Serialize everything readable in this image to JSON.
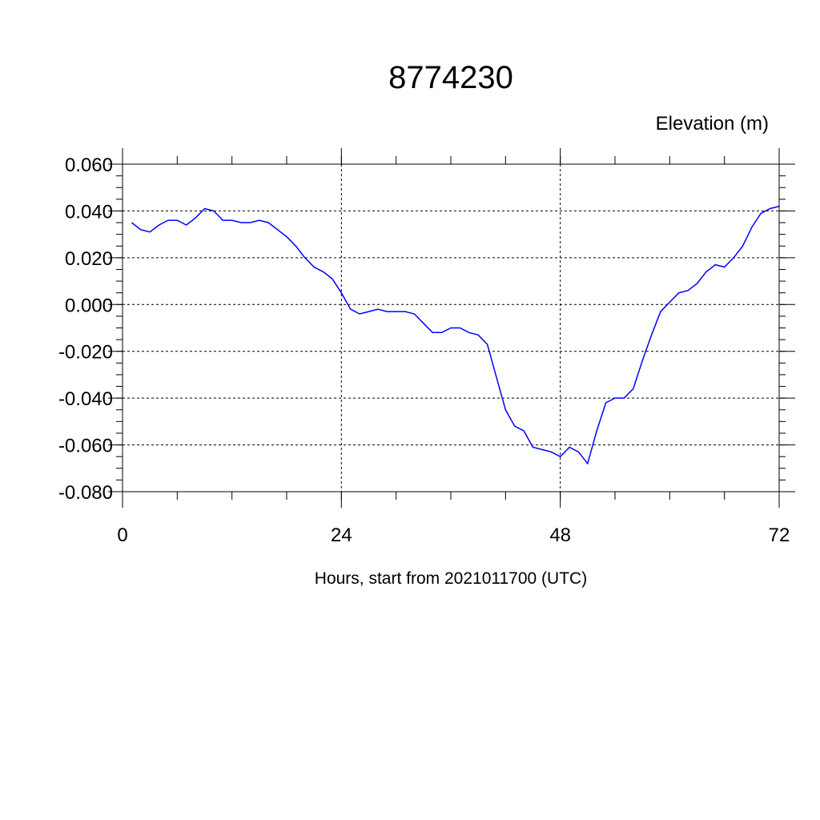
{
  "chart_data": {
    "type": "line",
    "title": "8774230",
    "ylabel": "Elevation (m)",
    "xlabel": "Hours, start from 2021011700 (UTC)",
    "xlim": [
      0,
      72
    ],
    "ylim": [
      -0.08,
      0.06
    ],
    "xticks": [
      0,
      24,
      48,
      72
    ],
    "xtick_labels": [
      "0",
      "24",
      "48",
      "72"
    ],
    "yticks": [
      -0.08,
      -0.06,
      -0.04,
      -0.02,
      0.0,
      0.02,
      0.04,
      0.06
    ],
    "ytick_labels": [
      "-0.080",
      "-0.060",
      "-0.040",
      "-0.020",
      "0.000",
      "0.020",
      "0.040",
      "0.060"
    ],
    "grid": true,
    "legend": "none",
    "series": [
      {
        "color": "#0000ff",
        "x": [
          1,
          2,
          3,
          4,
          5,
          6,
          7,
          8,
          9,
          10,
          11,
          12,
          13,
          14,
          15,
          16,
          17,
          18,
          19,
          20,
          21,
          22,
          23,
          24,
          25,
          26,
          27,
          28,
          29,
          30,
          31,
          32,
          33,
          34,
          35,
          36,
          37,
          38,
          39,
          40,
          41,
          42,
          43,
          44,
          45,
          46,
          47,
          48,
          49,
          50,
          51,
          52,
          53,
          54,
          55,
          56,
          57,
          58,
          59,
          60,
          61,
          62,
          63,
          64,
          65,
          66,
          67,
          68,
          69,
          70,
          71,
          72
        ],
        "y": [
          0.035,
          0.032,
          0.031,
          0.034,
          0.036,
          0.036,
          0.034,
          0.037,
          0.041,
          0.04,
          0.036,
          0.036,
          0.035,
          0.035,
          0.036,
          0.035,
          0.032,
          0.029,
          0.025,
          0.02,
          0.016,
          0.014,
          0.011,
          0.005,
          -0.002,
          -0.004,
          -0.003,
          -0.002,
          -0.003,
          -0.003,
          -0.003,
          -0.004,
          -0.008,
          -0.012,
          -0.012,
          -0.01,
          -0.01,
          -0.012,
          -0.013,
          -0.017,
          -0.031,
          -0.045,
          -0.052,
          -0.054,
          -0.061,
          -0.062,
          -0.063,
          -0.065,
          -0.061,
          -0.063,
          -0.068,
          -0.054,
          -0.042,
          -0.04,
          -0.04,
          -0.036,
          -0.024,
          -0.013,
          -0.003,
          0.001,
          0.005,
          0.006,
          0.009,
          0.014,
          0.017,
          0.016,
          0.02,
          0.025,
          0.033,
          0.039,
          0.041,
          0.042
        ]
      }
    ]
  }
}
